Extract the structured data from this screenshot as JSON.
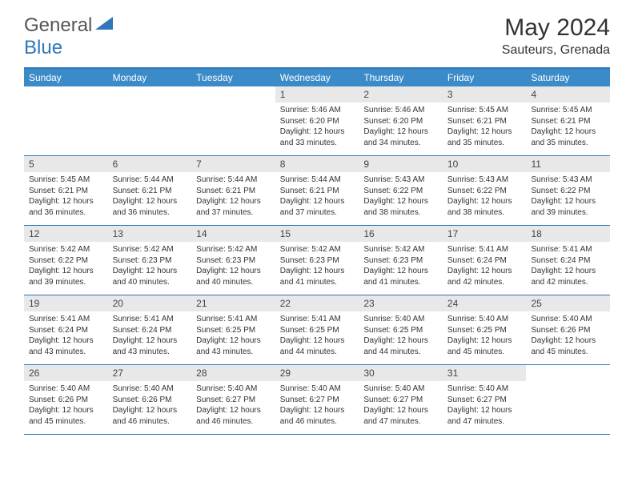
{
  "logo": {
    "text1": "General",
    "text2": "Blue"
  },
  "title": "May 2024",
  "location": "Sauteurs, Grenada",
  "colors": {
    "header_bg": "#3b8bc9",
    "header_border": "#2e77b8",
    "daynum_bg": "#e8e8e8",
    "text": "#333333",
    "logo_blue": "#2e77b8"
  },
  "weekdays": [
    "Sunday",
    "Monday",
    "Tuesday",
    "Wednesday",
    "Thursday",
    "Friday",
    "Saturday"
  ],
  "weeks": [
    [
      null,
      null,
      null,
      {
        "n": "1",
        "sunrise": "5:46 AM",
        "sunset": "6:20 PM",
        "daylight": "12 hours and 33 minutes."
      },
      {
        "n": "2",
        "sunrise": "5:46 AM",
        "sunset": "6:20 PM",
        "daylight": "12 hours and 34 minutes."
      },
      {
        "n": "3",
        "sunrise": "5:45 AM",
        "sunset": "6:21 PM",
        "daylight": "12 hours and 35 minutes."
      },
      {
        "n": "4",
        "sunrise": "5:45 AM",
        "sunset": "6:21 PM",
        "daylight": "12 hours and 35 minutes."
      }
    ],
    [
      {
        "n": "5",
        "sunrise": "5:45 AM",
        "sunset": "6:21 PM",
        "daylight": "12 hours and 36 minutes."
      },
      {
        "n": "6",
        "sunrise": "5:44 AM",
        "sunset": "6:21 PM",
        "daylight": "12 hours and 36 minutes."
      },
      {
        "n": "7",
        "sunrise": "5:44 AM",
        "sunset": "6:21 PM",
        "daylight": "12 hours and 37 minutes."
      },
      {
        "n": "8",
        "sunrise": "5:44 AM",
        "sunset": "6:21 PM",
        "daylight": "12 hours and 37 minutes."
      },
      {
        "n": "9",
        "sunrise": "5:43 AM",
        "sunset": "6:22 PM",
        "daylight": "12 hours and 38 minutes."
      },
      {
        "n": "10",
        "sunrise": "5:43 AM",
        "sunset": "6:22 PM",
        "daylight": "12 hours and 38 minutes."
      },
      {
        "n": "11",
        "sunrise": "5:43 AM",
        "sunset": "6:22 PM",
        "daylight": "12 hours and 39 minutes."
      }
    ],
    [
      {
        "n": "12",
        "sunrise": "5:42 AM",
        "sunset": "6:22 PM",
        "daylight": "12 hours and 39 minutes."
      },
      {
        "n": "13",
        "sunrise": "5:42 AM",
        "sunset": "6:23 PM",
        "daylight": "12 hours and 40 minutes."
      },
      {
        "n": "14",
        "sunrise": "5:42 AM",
        "sunset": "6:23 PM",
        "daylight": "12 hours and 40 minutes."
      },
      {
        "n": "15",
        "sunrise": "5:42 AM",
        "sunset": "6:23 PM",
        "daylight": "12 hours and 41 minutes."
      },
      {
        "n": "16",
        "sunrise": "5:42 AM",
        "sunset": "6:23 PM",
        "daylight": "12 hours and 41 minutes."
      },
      {
        "n": "17",
        "sunrise": "5:41 AM",
        "sunset": "6:24 PM",
        "daylight": "12 hours and 42 minutes."
      },
      {
        "n": "18",
        "sunrise": "5:41 AM",
        "sunset": "6:24 PM",
        "daylight": "12 hours and 42 minutes."
      }
    ],
    [
      {
        "n": "19",
        "sunrise": "5:41 AM",
        "sunset": "6:24 PM",
        "daylight": "12 hours and 43 minutes."
      },
      {
        "n": "20",
        "sunrise": "5:41 AM",
        "sunset": "6:24 PM",
        "daylight": "12 hours and 43 minutes."
      },
      {
        "n": "21",
        "sunrise": "5:41 AM",
        "sunset": "6:25 PM",
        "daylight": "12 hours and 43 minutes."
      },
      {
        "n": "22",
        "sunrise": "5:41 AM",
        "sunset": "6:25 PM",
        "daylight": "12 hours and 44 minutes."
      },
      {
        "n": "23",
        "sunrise": "5:40 AM",
        "sunset": "6:25 PM",
        "daylight": "12 hours and 44 minutes."
      },
      {
        "n": "24",
        "sunrise": "5:40 AM",
        "sunset": "6:25 PM",
        "daylight": "12 hours and 45 minutes."
      },
      {
        "n": "25",
        "sunrise": "5:40 AM",
        "sunset": "6:26 PM",
        "daylight": "12 hours and 45 minutes."
      }
    ],
    [
      {
        "n": "26",
        "sunrise": "5:40 AM",
        "sunset": "6:26 PM",
        "daylight": "12 hours and 45 minutes."
      },
      {
        "n": "27",
        "sunrise": "5:40 AM",
        "sunset": "6:26 PM",
        "daylight": "12 hours and 46 minutes."
      },
      {
        "n": "28",
        "sunrise": "5:40 AM",
        "sunset": "6:27 PM",
        "daylight": "12 hours and 46 minutes."
      },
      {
        "n": "29",
        "sunrise": "5:40 AM",
        "sunset": "6:27 PM",
        "daylight": "12 hours and 46 minutes."
      },
      {
        "n": "30",
        "sunrise": "5:40 AM",
        "sunset": "6:27 PM",
        "daylight": "12 hours and 47 minutes."
      },
      {
        "n": "31",
        "sunrise": "5:40 AM",
        "sunset": "6:27 PM",
        "daylight": "12 hours and 47 minutes."
      },
      null
    ]
  ],
  "labels": {
    "sunrise": "Sunrise:",
    "sunset": "Sunset:",
    "daylight": "Daylight:"
  }
}
